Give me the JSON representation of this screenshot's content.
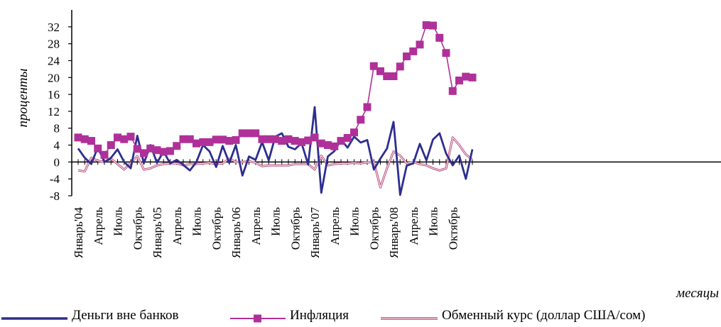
{
  "chart_data": {
    "type": "line",
    "ylabel": "проценты",
    "xlabel": "месяцы",
    "ylim": [
      -8,
      36
    ],
    "yticks": [
      32,
      28,
      24,
      20,
      16,
      12,
      8,
      4,
      0,
      -4,
      -8
    ],
    "xtick_labels": [
      "Январь'04",
      "Апрель",
      "Июль",
      "Октябрь",
      "Январь'05",
      "Апрель",
      "Июль",
      "Октябрь",
      "Январь'06",
      "Апрель",
      "Июль",
      "Октябрь",
      "Январь'07",
      "Апрель",
      "Июль",
      "Октябрь",
      "Январь'08",
      "Апрель",
      "Июль",
      "Октябрь"
    ],
    "series": [
      {
        "name": "Деньги вне банков",
        "color": "#2e2e8f",
        "marker": "none",
        "values": [
          3.2,
          1.0,
          -0.5,
          3.5,
          0.0,
          1.0,
          3.0,
          0.0,
          -1.5,
          6.2,
          -0.3,
          4.0,
          -0.2,
          2.5,
          -0.3,
          0.5,
          -0.7,
          -2.0,
          0.0,
          4.0,
          2.5,
          -1.2,
          3.8,
          -0.2,
          4.0,
          -3.2,
          1.3,
          0.5,
          4.7,
          0.4,
          6.0,
          6.8,
          3.6,
          3.0,
          4.5,
          -0.6,
          13.0,
          -7.3,
          1.3,
          2.6,
          5.3,
          3.4,
          6.0,
          4.6,
          5.2,
          -1.8,
          0.8,
          3.2,
          9.5,
          -7.8,
          -0.9,
          -0.3,
          4.3,
          0.4,
          5.3,
          6.8,
          2.0,
          -0.8,
          1.5,
          -4.0,
          3.0
        ]
      },
      {
        "name": "Инфляция",
        "color": "#b0309a",
        "marker": "square",
        "values": [
          5.8,
          5.4,
          5.0,
          3.2,
          1.7,
          4.0,
          5.8,
          5.4,
          6.0,
          3.1,
          2.1,
          3.2,
          2.8,
          2.4,
          2.6,
          3.8,
          5.4,
          5.4,
          4.4,
          4.7,
          4.7,
          5.3,
          5.3,
          5.0,
          5.2,
          6.8,
          6.8,
          6.8,
          5.4,
          5.4,
          5.4,
          5.0,
          5.4,
          5.0,
          4.7,
          5.1,
          5.8,
          4.4,
          4.0,
          3.7,
          5.0,
          5.7,
          7.0,
          10.0,
          13.0,
          22.7,
          21.5,
          20.3,
          20.3,
          22.6,
          25.0,
          26.2,
          27.8,
          32.4,
          32.3,
          29.4,
          25.8,
          16.8,
          19.3,
          20.2,
          20.0
        ]
      },
      {
        "name": "Обменный курс (доллар США/сом)",
        "color": "#b84a7a",
        "marker": "none",
        "values": [
          -2.0,
          -2.2,
          1.0,
          0.3,
          0.0,
          0.8,
          -0.5,
          -1.8,
          -0.2,
          1.4,
          -1.8,
          -1.5,
          -0.8,
          -0.5,
          -0.3,
          -0.3,
          -0.8,
          -0.5,
          -0.5,
          -0.3,
          -0.2,
          -0.5,
          -0.3,
          0.8,
          0.0,
          0.0,
          0.2,
          -0.2,
          -1.0,
          -0.8,
          -0.8,
          -0.8,
          -0.8,
          -0.5,
          -0.5,
          -0.5,
          -1.8,
          1.5,
          -0.8,
          -0.5,
          -0.3,
          -0.3,
          -0.2,
          -0.3,
          -0.1,
          0.0,
          -6.0,
          -1.5,
          2.5,
          1.5,
          -0.3,
          0.0,
          -0.5,
          -0.8,
          -1.5,
          -2.0,
          -1.5,
          5.8,
          4.0,
          1.8,
          0.5
        ]
      }
    ],
    "grid": false,
    "legend_position": "bottom"
  }
}
